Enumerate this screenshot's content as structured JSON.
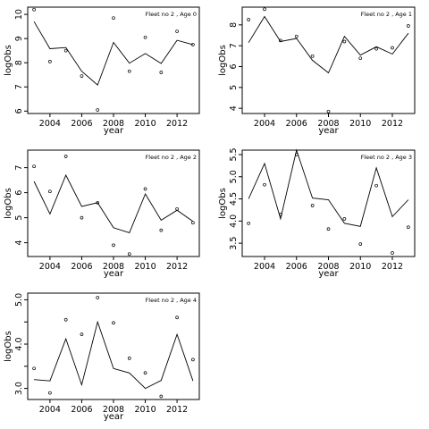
{
  "chart_data": [
    {
      "type": "line",
      "title": "Fleet no 2 , Age 0",
      "xlabel": "year",
      "ylabel": "logObs",
      "x": [
        2003,
        2004,
        2005,
        2006,
        2007,
        2008,
        2009,
        2010,
        2011,
        2012,
        2013
      ],
      "xticks": [
        2004,
        2006,
        2008,
        2010,
        2012
      ],
      "xtick_labels": [
        "2004",
        "2006",
        "2008",
        "2010",
        "2012"
      ],
      "yticks": [
        6,
        7,
        8,
        9,
        10
      ],
      "ytick_labels": [
        "6",
        "7",
        "8",
        "9",
        "10"
      ],
      "xlim": [
        2002.6,
        2013.4
      ],
      "ylim": [
        5.9,
        10.3
      ],
      "series": [
        {
          "style": "line",
          "values": [
            9.7,
            8.58,
            8.63,
            7.65,
            7.08,
            8.84,
            7.98,
            8.38,
            7.97,
            8.93,
            8.75
          ]
        },
        {
          "style": "points",
          "values": [
            10.2,
            8.05,
            8.5,
            7.45,
            6.05,
            9.85,
            7.65,
            9.05,
            7.6,
            9.3,
            8.75
          ]
        }
      ]
    },
    {
      "type": "line",
      "title": "Fleet no 2 , Age 1",
      "xlabel": "year",
      "ylabel": "logObs",
      "x": [
        2003,
        2004,
        2005,
        2006,
        2007,
        2008,
        2009,
        2010,
        2011,
        2012,
        2013
      ],
      "xticks": [
        2004,
        2006,
        2008,
        2010,
        2012
      ],
      "xtick_labels": [
        "2004",
        "2006",
        "2008",
        "2010",
        "2012"
      ],
      "yticks": [
        4,
        5,
        6,
        7,
        8
      ],
      "ytick_labels": [
        "4",
        "5",
        "6",
        "7",
        "8"
      ],
      "xlim": [
        2002.6,
        2013.4
      ],
      "ylim": [
        3.75,
        8.85
      ],
      "series": [
        {
          "style": "line",
          "values": [
            7.15,
            8.4,
            7.2,
            7.35,
            6.3,
            5.7,
            7.45,
            6.55,
            6.95,
            6.6,
            7.6
          ]
        },
        {
          "style": "points",
          "values": [
            8.25,
            8.75,
            7.25,
            7.45,
            6.5,
            3.85,
            7.2,
            6.4,
            6.85,
            6.9,
            7.95
          ]
        }
      ]
    },
    {
      "type": "line",
      "title": "Fleet no 2 , Age 2",
      "xlabel": "year",
      "ylabel": "logObs",
      "x": [
        2003,
        2004,
        2005,
        2006,
        2007,
        2008,
        2009,
        2010,
        2011,
        2012,
        2013
      ],
      "xticks": [
        2004,
        2006,
        2008,
        2010,
        2012
      ],
      "xtick_labels": [
        "2004",
        "2006",
        "2008",
        "2010",
        "2012"
      ],
      "yticks": [
        4,
        5,
        6,
        7
      ],
      "ytick_labels": [
        "4",
        "5",
        "6",
        "7"
      ],
      "xlim": [
        2002.6,
        2013.4
      ],
      "ylim": [
        3.45,
        7.7
      ],
      "series": [
        {
          "style": "line",
          "values": [
            6.45,
            5.15,
            6.7,
            5.45,
            5.6,
            4.6,
            4.4,
            5.95,
            4.9,
            5.3,
            4.85
          ]
        },
        {
          "style": "points",
          "values": [
            7.05,
            6.05,
            7.45,
            5.0,
            5.6,
            3.9,
            3.55,
            6.15,
            4.5,
            5.35,
            4.8
          ]
        }
      ]
    },
    {
      "type": "line",
      "title": "Fleet no 2 , Age 3",
      "xlabel": "year",
      "ylabel": "logObs",
      "x": [
        2003,
        2004,
        2005,
        2006,
        2007,
        2008,
        2009,
        2010,
        2011,
        2012,
        2013
      ],
      "xticks": [
        2004,
        2006,
        2008,
        2010,
        2012
      ],
      "xtick_labels": [
        "2004",
        "2006",
        "2008",
        "2010",
        "2012"
      ],
      "yticks": [
        3.5,
        4.0,
        4.5,
        5.0,
        5.5
      ],
      "ytick_labels": [
        "3.5",
        "4.0",
        "4.5",
        "5.0",
        "5.5"
      ],
      "xlim": [
        2002.6,
        2013.4
      ],
      "ylim": [
        3.2,
        5.6
      ],
      "series": [
        {
          "style": "line",
          "values": [
            4.5,
            5.3,
            4.05,
            5.6,
            4.52,
            4.48,
            3.95,
            3.88,
            5.2,
            4.1,
            4.48
          ]
        },
        {
          "style": "points",
          "values": [
            3.95,
            4.82,
            4.15,
            5.5,
            4.35,
            3.82,
            4.05,
            3.48,
            4.8,
            3.28,
            3.86
          ]
        }
      ]
    },
    {
      "type": "line",
      "title": "Fleet no 2 , Age 4",
      "xlabel": "year",
      "ylabel": "logObs",
      "x": [
        2003,
        2004,
        2005,
        2006,
        2007,
        2008,
        2009,
        2010,
        2011,
        2012,
        2013
      ],
      "xticks": [
        2004,
        2006,
        2008,
        2010,
        2012
      ],
      "xtick_labels": [
        "2004",
        "2006",
        "2008",
        "2010",
        "2012"
      ],
      "yticks": [
        3.0,
        3.5,
        4.0,
        4.5,
        5.0
      ],
      "ytick_labels": [
        "3.0",
        "",
        "4.0",
        "",
        "5.0"
      ],
      "xlim": [
        2002.6,
        2013.4
      ],
      "ylim": [
        2.75,
        5.15
      ],
      "series": [
        {
          "style": "line",
          "values": [
            3.2,
            3.17,
            4.12,
            3.08,
            4.5,
            3.45,
            3.35,
            3.0,
            3.18,
            4.22,
            3.17
          ]
        },
        {
          "style": "points",
          "values": [
            3.45,
            2.9,
            4.55,
            4.22,
            5.05,
            4.48,
            3.68,
            3.35,
            2.82,
            4.6,
            3.65
          ]
        }
      ]
    }
  ]
}
